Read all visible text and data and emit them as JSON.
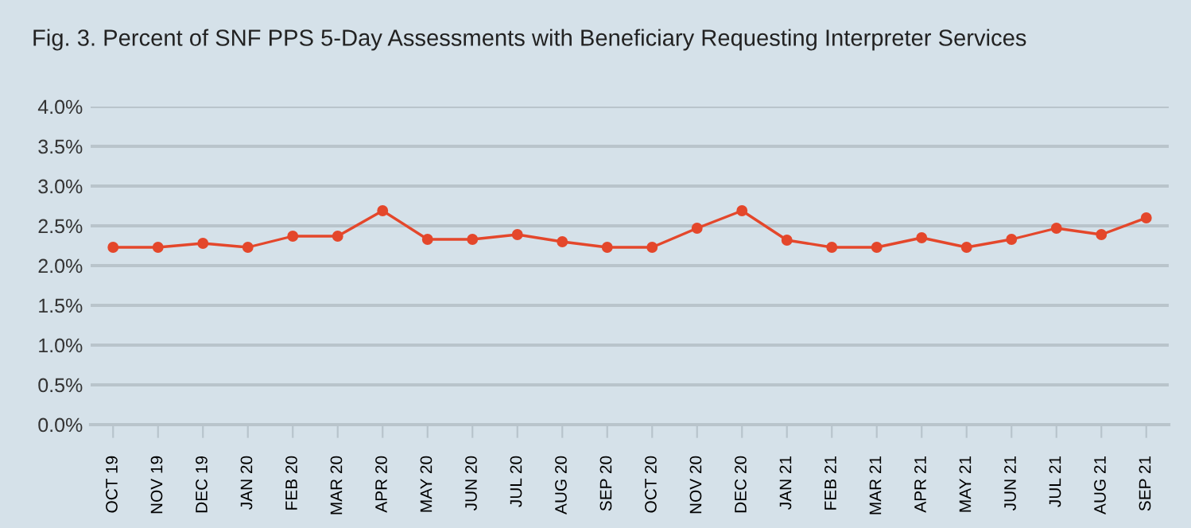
{
  "chart_data": {
    "type": "line",
    "title": "Fig. 3. Percent of SNF PPS 5-Day Assessments with Beneficiary Requesting Interpreter Services",
    "categories": [
      "OCT 19",
      "NOV 19",
      "DEC 19",
      "JAN 20",
      "FEB 20",
      "MAR 20",
      "APR 20",
      "MAY 20",
      "JUN 20",
      "JUL 20",
      "AUG 20",
      "SEP 20",
      "OCT 20",
      "NOV 20",
      "DEC 20",
      "JAN 21",
      "FEB 21",
      "MAR 21",
      "APR 21",
      "MAY 21",
      "JUN 21",
      "JUL 21",
      "AUG 21",
      "SEP 21"
    ],
    "series": [
      {
        "color": "#e4472b",
        "values": [
          2.23,
          2.23,
          2.28,
          2.23,
          2.37,
          2.37,
          2.69,
          2.33,
          2.33,
          2.39,
          2.3,
          2.23,
          2.23,
          2.47,
          2.69,
          2.32,
          2.23,
          2.23,
          2.35,
          2.23,
          2.33,
          2.47,
          2.39,
          2.6
        ]
      }
    ],
    "ylim": [
      0,
      4
    ],
    "yticks": [
      {
        "value": 0,
        "label": "0.0%"
      },
      {
        "value": 0.5,
        "label": "0.5%"
      },
      {
        "value": 1,
        "label": "1.0%"
      },
      {
        "value": 1.5,
        "label": "1.5%"
      },
      {
        "value": 2,
        "label": "2.0%"
      },
      {
        "value": 2.5,
        "label": "2.5%"
      },
      {
        "value": 3,
        "label": "3.0%"
      },
      {
        "value": 3.5,
        "label": "3.5%"
      },
      {
        "value": 4,
        "label": "4.0%"
      }
    ],
    "grid": "y",
    "marker": "circle",
    "line_style": "solid"
  }
}
